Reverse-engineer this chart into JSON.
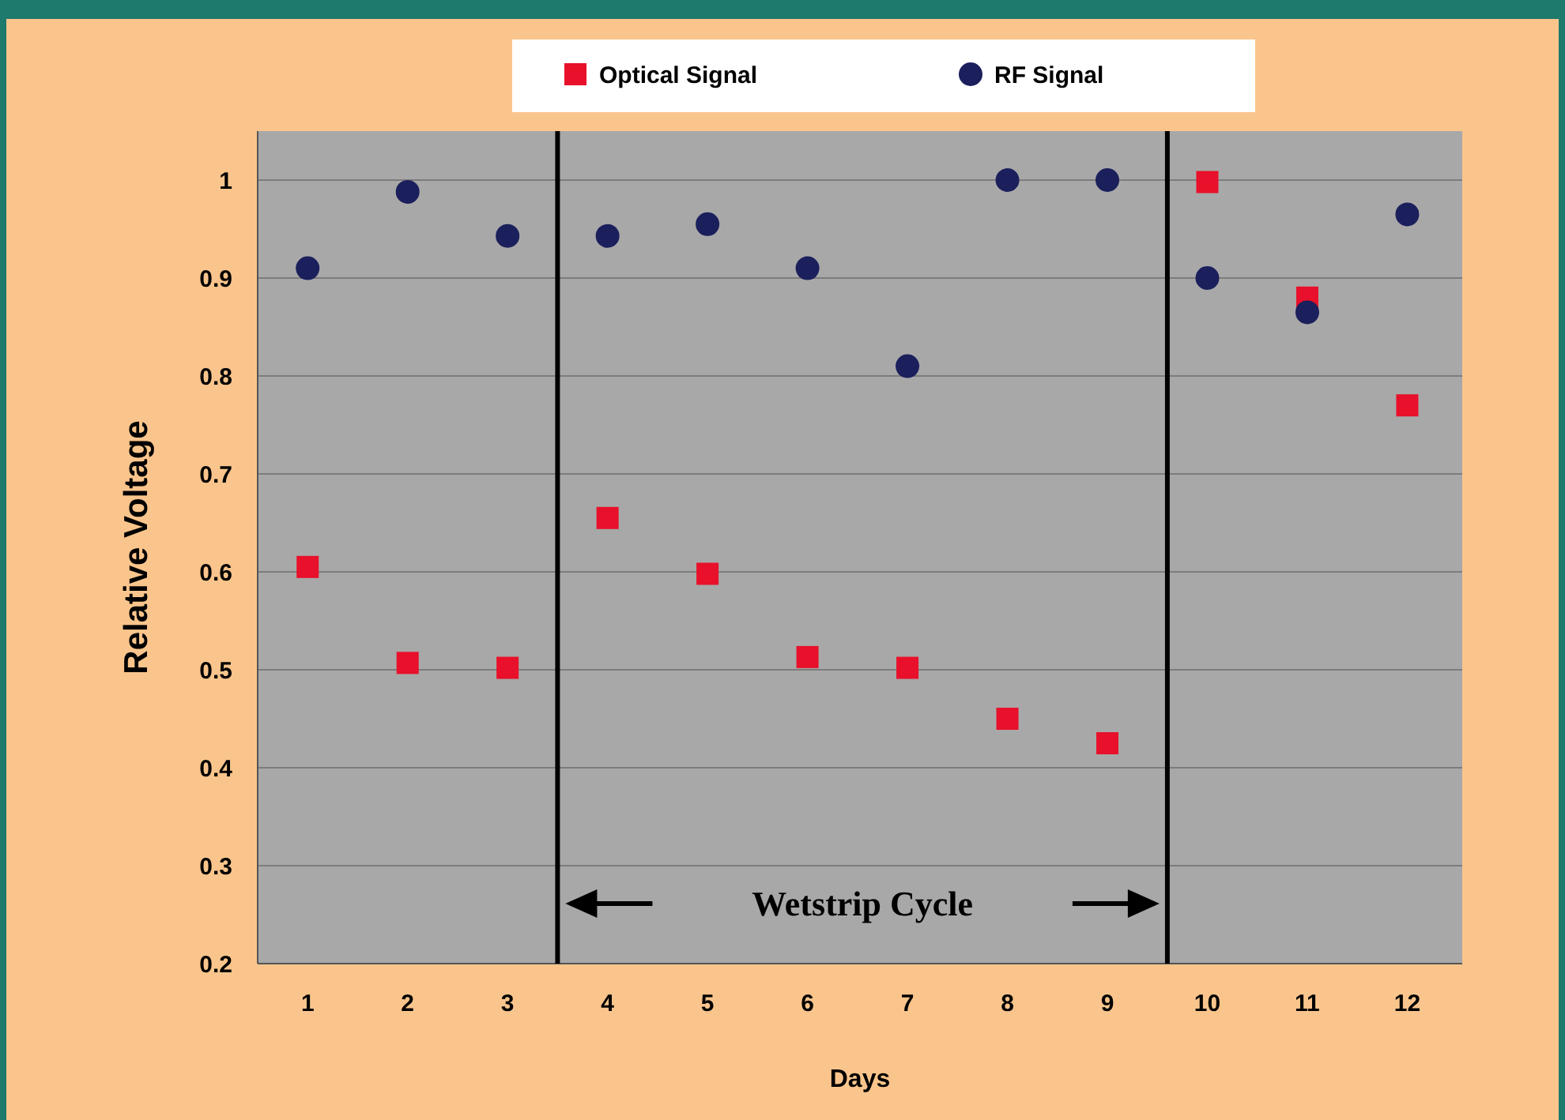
{
  "chart_data": {
    "type": "scatter",
    "xlabel": "Days",
    "ylabel": "Relative Voltage",
    "x": [
      1,
      2,
      3,
      4,
      5,
      6,
      7,
      8,
      9,
      10,
      11,
      12
    ],
    "xlim": [
      0.5,
      12.55
    ],
    "xticks": [
      1,
      2,
      3,
      4,
      5,
      6,
      7,
      8,
      9,
      10,
      11,
      12
    ],
    "ylim": [
      0.2,
      1.05
    ],
    "yticks": [
      0.2,
      0.3,
      0.4,
      0.5,
      0.6,
      0.7,
      0.8,
      0.9,
      {
        "value": 1,
        "label": "1"
      }
    ],
    "grid": "y",
    "legend": "top",
    "series": [
      {
        "name": "Optical  Signal",
        "color": "#e8102a",
        "marker": "square",
        "values": [
          0.605,
          0.507,
          0.502,
          0.655,
          0.598,
          0.513,
          0.502,
          0.45,
          0.425,
          0.998,
          0.88,
          0.77
        ]
      },
      {
        "name": "RF Signal",
        "color": "#1b1f5c",
        "marker": "circle",
        "values": [
          0.91,
          0.988,
          0.943,
          0.943,
          0.955,
          0.91,
          0.81,
          1.0,
          1.0,
          0.9,
          0.865,
          0.965
        ]
      }
    ],
    "ref_lines": [
      {
        "axis": "x",
        "value": 3.5,
        "color": "#000000"
      },
      {
        "axis": "x",
        "value": 9.6,
        "color": "#000000"
      }
    ],
    "annotations": [
      "Wetstrip Cycle"
    ]
  }
}
